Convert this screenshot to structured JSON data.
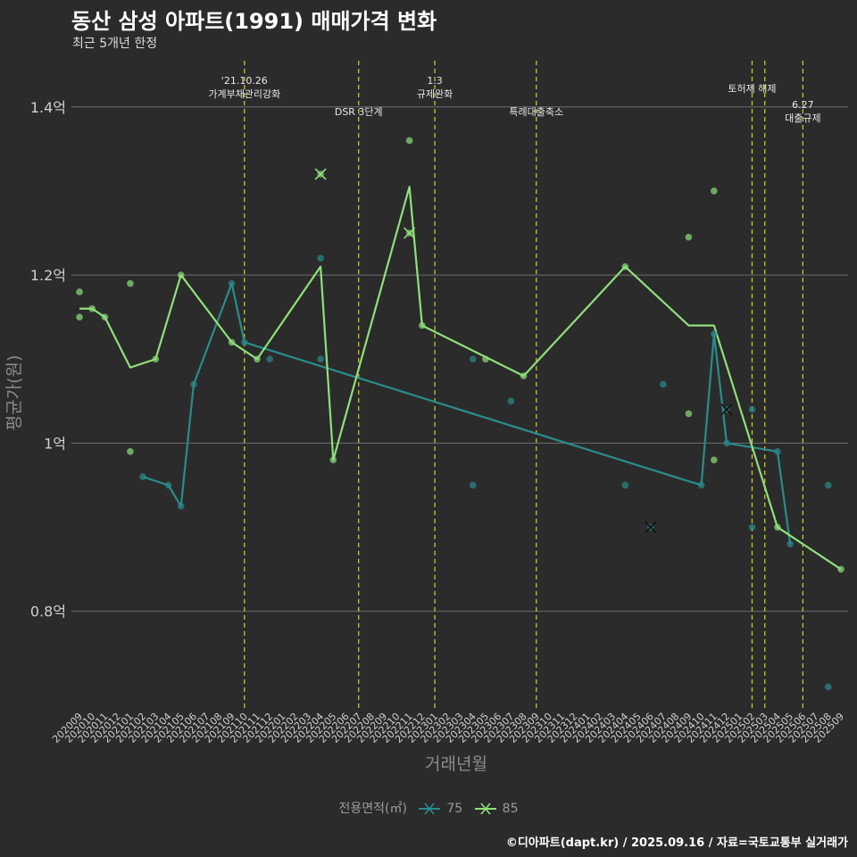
{
  "header": {
    "title": "동산 삼성 아파트(1991) 매매가격 변화",
    "subtitle": "최근 5개년 한정"
  },
  "caption": "©디아파트(dapt.kr) / 2025.09.16 / 자료=국토교통부 실거래가",
  "legend": {
    "title": "전용면적(㎡)",
    "items": [
      {
        "label": "75",
        "color": "#2a8c8c"
      },
      {
        "label": "85",
        "color": "#8fe07a"
      }
    ]
  },
  "chart_data": {
    "type": "line",
    "title": "동산 삼성 아파트(1991) 매매가격 변화",
    "subtitle": "최근 5개년 한정",
    "xlabel": "거래년월",
    "ylabel": "평균가(원)",
    "categories": [
      "202009",
      "202010",
      "202011",
      "202012",
      "202101",
      "202102",
      "202103",
      "202104",
      "202105",
      "202106",
      "202107",
      "202108",
      "202109",
      "202110",
      "202111",
      "202112",
      "202201",
      "202202",
      "202203",
      "202204",
      "202205",
      "202206",
      "202207",
      "202208",
      "202209",
      "202210",
      "202211",
      "202212",
      "202301",
      "202302",
      "202303",
      "202304",
      "202305",
      "202306",
      "202307",
      "202308",
      "202309",
      "202310",
      "202311",
      "202312",
      "202401",
      "202402",
      "202403",
      "202404",
      "202405",
      "202406",
      "202407",
      "202408",
      "202409",
      "202410",
      "202411",
      "202412",
      "202501",
      "202502",
      "202503",
      "202504",
      "202505",
      "202506",
      "202507",
      "202508",
      "202509"
    ],
    "y_ticks": [
      {
        "value": 0.8,
        "label": "0.8억"
      },
      {
        "value": 1.0,
        "label": "1억"
      },
      {
        "value": 1.2,
        "label": "1.2억"
      },
      {
        "value": 1.4,
        "label": "1.4억"
      }
    ],
    "ylim": [
      0.685,
      1.455
    ],
    "grid": true,
    "legend_position": "bottom",
    "series": [
      {
        "name": "75",
        "color": "#2a8c8c",
        "line": [
          {
            "x": "202102",
            "y": 0.96
          },
          {
            "x": "202104",
            "y": 0.95
          },
          {
            "x": "202105",
            "y": 0.925
          },
          {
            "x": "202106",
            "y": 1.07
          },
          {
            "x": "202109",
            "y": 1.19
          },
          {
            "x": "202110",
            "y": 1.12
          },
          {
            "x": "202410",
            "y": 0.95
          },
          {
            "x": "202411",
            "y": 1.13
          },
          {
            "x": "202412",
            "y": 1.0
          },
          {
            "x": "202504",
            "y": 0.99
          },
          {
            "x": "202505",
            "y": 0.88
          }
        ],
        "points": [
          {
            "x": "202102",
            "y": 0.96
          },
          {
            "x": "202104",
            "y": 0.95
          },
          {
            "x": "202105",
            "y": 0.925
          },
          {
            "x": "202106",
            "y": 1.07
          },
          {
            "x": "202109",
            "y": 1.19
          },
          {
            "x": "202110",
            "y": 1.12
          },
          {
            "x": "202112",
            "y": 1.1
          },
          {
            "x": "202204",
            "y": 1.22
          },
          {
            "x": "202204",
            "y": 1.1
          },
          {
            "x": "202304",
            "y": 0.95
          },
          {
            "x": "202304",
            "y": 1.1
          },
          {
            "x": "202307",
            "y": 1.05
          },
          {
            "x": "202404",
            "y": 0.95
          },
          {
            "x": "202407",
            "y": 1.07
          },
          {
            "x": "202410",
            "y": 0.95
          },
          {
            "x": "202411",
            "y": 1.13
          },
          {
            "x": "202412",
            "y": 1.0
          },
          {
            "x": "202502",
            "y": 1.04
          },
          {
            "x": "202502",
            "y": 0.9
          },
          {
            "x": "202504",
            "y": 0.99
          },
          {
            "x": "202505",
            "y": 0.88
          },
          {
            "x": "202508",
            "y": 0.95
          },
          {
            "x": "202508",
            "y": 0.71
          }
        ],
        "cancelled": [
          {
            "x": "202406",
            "y": 0.9
          },
          {
            "x": "202412",
            "y": 1.04
          }
        ]
      },
      {
        "name": "85",
        "color": "#8fe07a",
        "line": [
          {
            "x": "202009",
            "y": 1.16
          },
          {
            "x": "202010",
            "y": 1.16
          },
          {
            "x": "202011",
            "y": 1.15
          },
          {
            "x": "202101",
            "y": 1.09
          },
          {
            "x": "202103",
            "y": 1.1
          },
          {
            "x": "202105",
            "y": 1.2
          },
          {
            "x": "202109",
            "y": 1.12
          },
          {
            "x": "202111",
            "y": 1.1
          },
          {
            "x": "202204",
            "y": 1.21
          },
          {
            "x": "202205",
            "y": 0.98
          },
          {
            "x": "202211",
            "y": 1.305
          },
          {
            "x": "202212",
            "y": 1.14
          },
          {
            "x": "202308",
            "y": 1.08
          },
          {
            "x": "202404",
            "y": 1.21
          },
          {
            "x": "202409",
            "y": 1.14
          },
          {
            "x": "202411",
            "y": 1.14
          },
          {
            "x": "202504",
            "y": 0.9
          },
          {
            "x": "202509",
            "y": 0.85
          }
        ],
        "points": [
          {
            "x": "202009",
            "y": 1.18
          },
          {
            "x": "202009",
            "y": 1.15
          },
          {
            "x": "202010",
            "y": 1.16
          },
          {
            "x": "202011",
            "y": 1.15
          },
          {
            "x": "202101",
            "y": 1.19
          },
          {
            "x": "202101",
            "y": 0.99
          },
          {
            "x": "202103",
            "y": 1.1
          },
          {
            "x": "202105",
            "y": 1.2
          },
          {
            "x": "202109",
            "y": 1.12
          },
          {
            "x": "202111",
            "y": 1.1
          },
          {
            "x": "202205",
            "y": 0.98
          },
          {
            "x": "202211",
            "y": 1.36
          },
          {
            "x": "202212",
            "y": 1.14
          },
          {
            "x": "202305",
            "y": 1.1
          },
          {
            "x": "202308",
            "y": 1.08
          },
          {
            "x": "202404",
            "y": 1.21
          },
          {
            "x": "202409",
            "y": 1.245
          },
          {
            "x": "202409",
            "y": 1.035
          },
          {
            "x": "202411",
            "y": 1.3
          },
          {
            "x": "202411",
            "y": 0.98
          },
          {
            "x": "202504",
            "y": 0.9
          },
          {
            "x": "202509",
            "y": 0.85
          }
        ],
        "cancelled": [
          {
            "x": "202204",
            "y": 1.32
          },
          {
            "x": "202211",
            "y": 1.25
          }
        ]
      }
    ],
    "events": [
      {
        "x": "202110",
        "lines": [
          "'21.10.26",
          "가계부채관리강화"
        ],
        "level": 1
      },
      {
        "x": "202207",
        "lines": [
          "DSR 3단계"
        ],
        "level": 3
      },
      {
        "x": "202301",
        "lines": [
          "1.3",
          "규제완화"
        ],
        "level": 1
      },
      {
        "x": "202309",
        "lines": [
          "특례대출축소"
        ],
        "level": 3
      },
      {
        "x": "202502",
        "lines": [
          "토허제 해제"
        ],
        "level": 2
      },
      {
        "x": "202503",
        "lines": [],
        "level": 2
      },
      {
        "x": "202506",
        "lines": [
          "6.27",
          "대출규제"
        ],
        "level": 4
      }
    ]
  }
}
